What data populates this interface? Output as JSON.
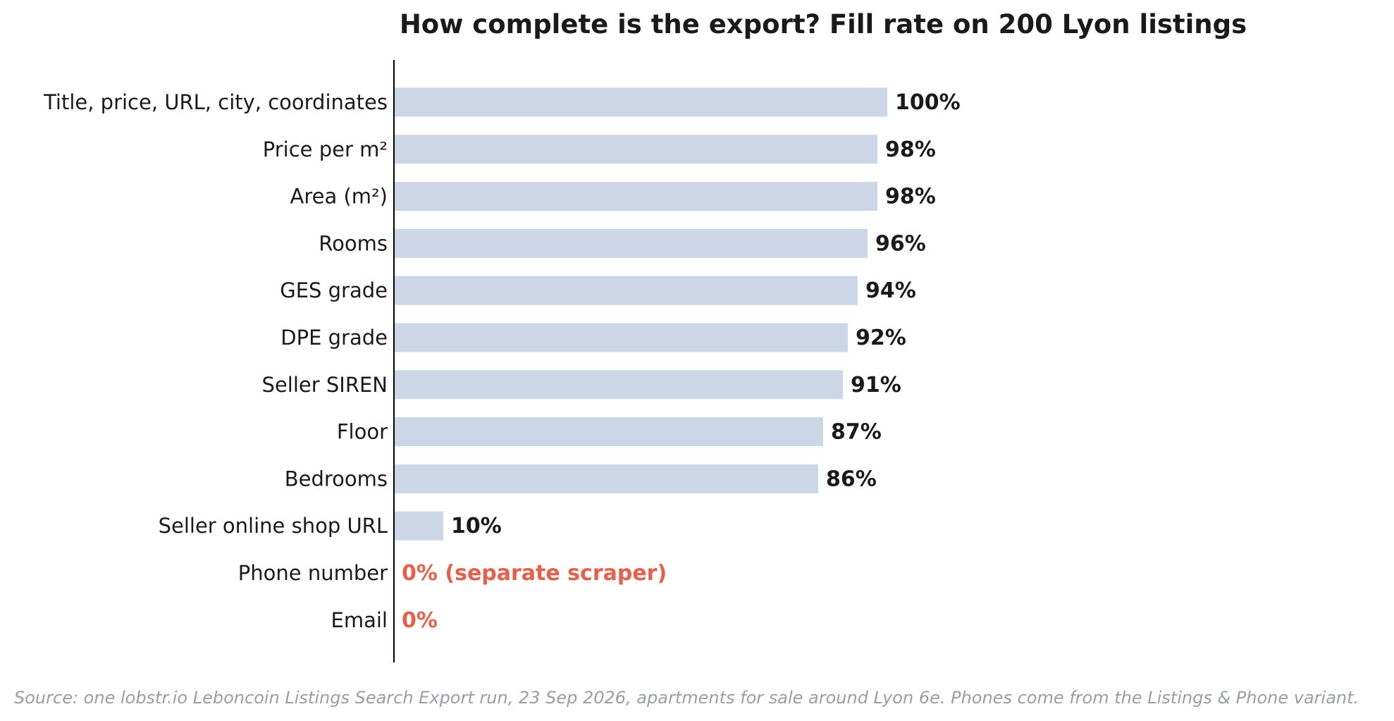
{
  "chart_data": {
    "type": "bar",
    "orientation": "horizontal",
    "title": "How complete is the export? Fill rate on 200 Lyon listings",
    "xlabel": "",
    "ylabel": "",
    "xlim": [
      0,
      180
    ],
    "grid": false,
    "legend": "none",
    "categories": [
      "Title, price, URL, city, coordinates",
      "Price per m²",
      "Area (m²)",
      "Rooms",
      "GES grade",
      "DPE grade",
      "Seller SIREN",
      "Floor",
      "Bedrooms",
      "Seller online shop URL",
      "Phone number",
      "Email"
    ],
    "values": [
      100,
      98,
      98,
      96,
      94,
      92,
      91,
      87,
      86,
      10,
      0,
      0
    ],
    "value_labels": [
      "100%",
      "98%",
      "98%",
      "96%",
      "94%",
      "92%",
      "91%",
      "87%",
      "86%",
      "10%",
      "0% (separate scraper)",
      "0%"
    ],
    "highlight": [
      false,
      false,
      false,
      false,
      false,
      false,
      false,
      false,
      false,
      false,
      true,
      true
    ],
    "colors": {
      "bar": "#cbd7e6",
      "label": "#1a1a1a",
      "highlight_label": "#e8604a",
      "axis": "#000000"
    }
  },
  "source_note": "Source: one lobstr.io Leboncoin Listings Search Export run, 23 Sep 2026, apartments for sale around Lyon 6e. Phones come from the Listings & Phone variant."
}
